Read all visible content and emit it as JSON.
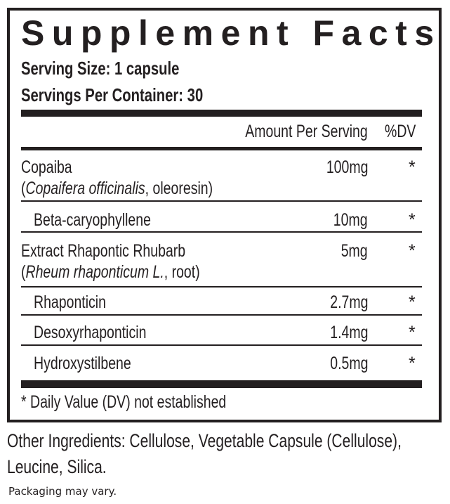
{
  "title": "Supplement Facts",
  "serving_size": "Serving Size: 1 capsule",
  "servings_per_container": "Servings Per Container: 30",
  "header": {
    "amount": "Amount Per Serving",
    "dv": "%DV"
  },
  "rows": [
    {
      "name": "Copaiba",
      "sub_italic": "Copaifera officinalis",
      "sub_rest": ", oleoresin)",
      "amount": "100mg",
      "dv": "*"
    },
    {
      "name": "Beta-caryophyllene",
      "amount": "10mg",
      "dv": "*"
    },
    {
      "name": "Extract Rhapontic Rhubarb",
      "sub_italic": "Rheum rhaponticum L.",
      "sub_rest": ", root)",
      "amount": "5mg",
      "dv": "*"
    },
    {
      "name": "Rhaponticin",
      "amount": "2.7mg",
      "dv": "*"
    },
    {
      "name": "Desoxyrhaponticin",
      "amount": "1.4mg",
      "dv": "*"
    },
    {
      "name": "Hydroxystilbene",
      "amount": "0.5mg",
      "dv": "*"
    }
  ],
  "open_paren": "(",
  "footnote": "* Daily Value (DV) not established",
  "other_ingredients_line1": "Other Ingredients:  Cellulose, Vegetable Capsule (Cellulose),",
  "other_ingredients_line2": "Leucine, Silica.",
  "packaging_note": "Packaging may vary."
}
